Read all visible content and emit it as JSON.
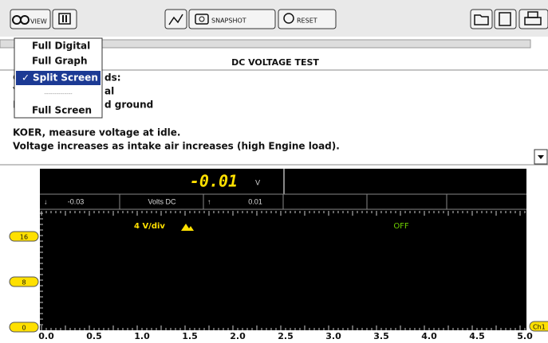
{
  "toolbar": {
    "view": "VIEW",
    "snapshot": "SNAPSHOT",
    "reset": "RESET"
  },
  "menu": {
    "items": [
      "Full Digital",
      "Full Graph",
      "Split Screen",
      "Full Screen"
    ],
    "selected": "✓",
    "separator": "--------------"
  },
  "test": {
    "title": "DC VOLTAGE TEST",
    "partial_lines": [
      [
        "C",
        "ds:"
      ],
      [
        "Y",
        "al"
      ],
      [
        "E",
        "d ground"
      ]
    ],
    "lines": [
      "KOER, measure voltage at idle.",
      "Voltage increases as intake air increases (high Engine load)."
    ]
  },
  "meter": {
    "reading": "-0.01",
    "unit": "V",
    "min_arrow": "↓",
    "min": "-0.03",
    "mode": "Volts DC",
    "max_arrow": "↑",
    "max": "0.01"
  },
  "graph": {
    "scale": "4 V/div",
    "trigger": "OFF",
    "y_markers": [
      "16",
      "8",
      "0"
    ],
    "channel": "Ch1",
    "x_labels": [
      "0.0",
      "0.5",
      "1.0",
      "1.5",
      "2.0",
      "2.5",
      "3.0",
      "3.5",
      "4.0",
      "4.5",
      "5.0"
    ]
  }
}
